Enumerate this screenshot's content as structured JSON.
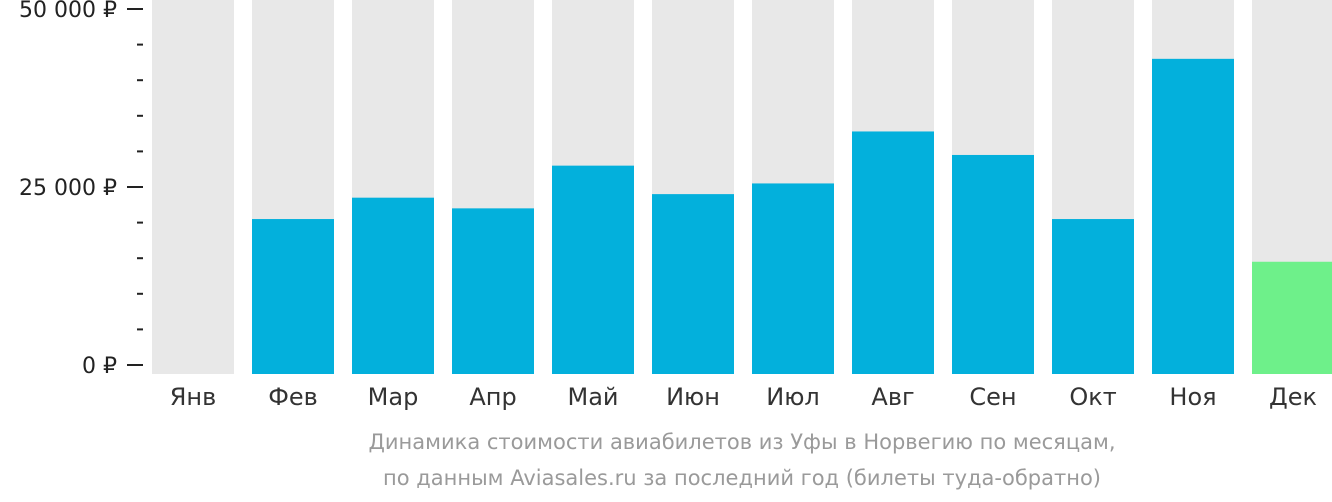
{
  "chart_data": {
    "type": "bar",
    "categories": [
      "Янв",
      "Фев",
      "Мар",
      "Апр",
      "Май",
      "Июн",
      "Июл",
      "Авг",
      "Сен",
      "Окт",
      "Ноя",
      "Дек"
    ],
    "values": [
      null,
      20500,
      23500,
      22000,
      28000,
      24000,
      25500,
      32800,
      29500,
      20500,
      43000,
      14500
    ],
    "ylim": [
      0,
      50000
    ],
    "y_ticks": [
      {
        "value": 0,
        "label": "0 ₽"
      },
      {
        "value": 25000,
        "label": "25 000 ₽"
      },
      {
        "value": 50000,
        "label": "50 000 ₽"
      }
    ],
    "grid": false,
    "colors": {
      "bar": "#03b0dc",
      "highlight_bar": "#6ef08a",
      "highlight_index": 11,
      "background_bar": "#e8e8e8",
      "axis": "#222222"
    }
  },
  "caption": {
    "line1": "Динамика стоимости авиабилетов из Уфы в Норвегию по месяцам,",
    "line2": "по данным Aviasales.ru за последний год (билеты туда-обратно)"
  }
}
